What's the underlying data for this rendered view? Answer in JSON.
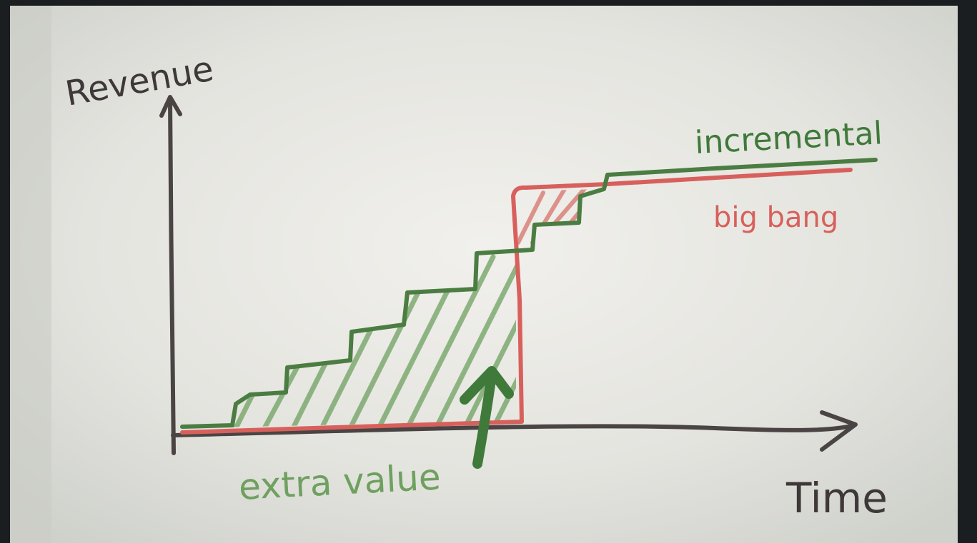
{
  "y_axis_label": "Revenue",
  "x_axis_label": "Time",
  "series_labels": [
    "incremental",
    "big bang"
  ],
  "annotation": "extra value"
}
